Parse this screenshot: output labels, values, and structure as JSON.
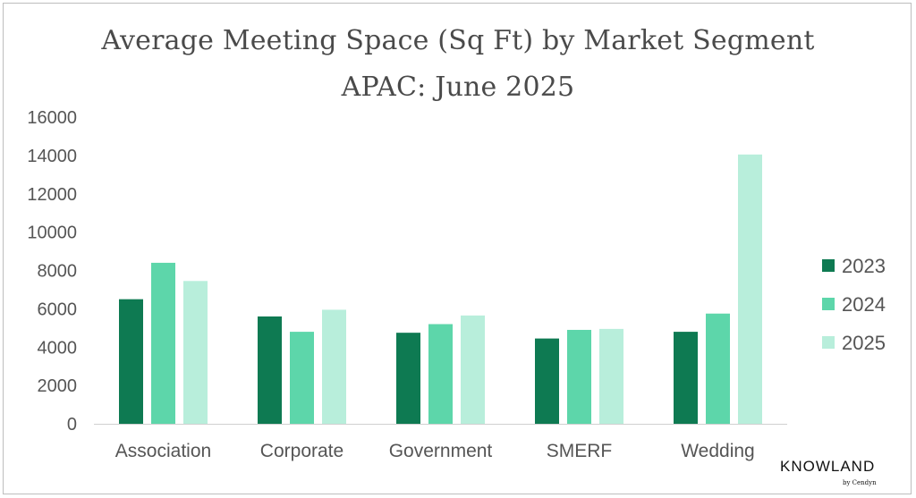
{
  "chart_data": {
    "type": "bar",
    "title": "Average Meeting Space (Sq Ft) by Market Segment",
    "subtitle": "APAC: June 2025",
    "categories": [
      "Association",
      "Corporate",
      "Government",
      "SMERF",
      "Wedding"
    ],
    "series": [
      {
        "name": "2023",
        "values": [
          6500,
          5600,
          4750,
          4450,
          4800
        ],
        "color": "#0e7a52"
      },
      {
        "name": "2024",
        "values": [
          8400,
          4800,
          5200,
          4900,
          5750
        ],
        "color": "#5dd6aa"
      },
      {
        "name": "2025",
        "values": [
          7450,
          5950,
          5650,
          4950,
          14050
        ],
        "color": "#b8eedb"
      }
    ],
    "yticks": [
      "0",
      "2000",
      "4000",
      "6000",
      "8000",
      "10000",
      "12000",
      "14000",
      "16000"
    ],
    "ylim": [
      0,
      16000
    ],
    "legend_position": "right",
    "grid": false
  },
  "brand": {
    "name": "KNOWLAND",
    "tagline": "by Cendyn"
  }
}
